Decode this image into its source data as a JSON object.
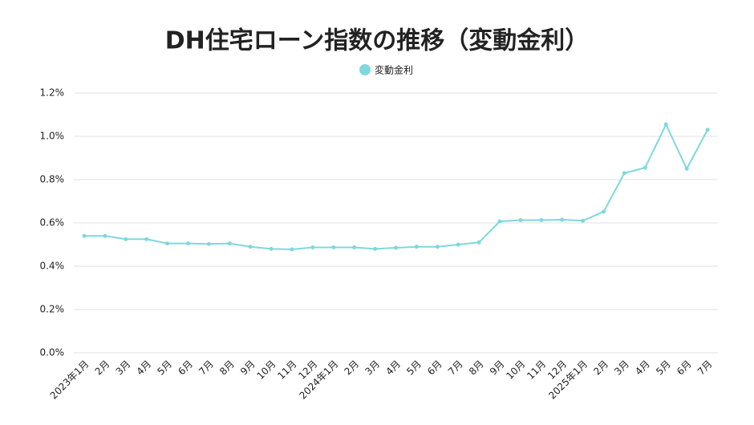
{
  "chart_data": {
    "type": "line",
    "title": "DH住宅ローン指数の推移（変動金利）",
    "categories": [
      "2023年1月",
      "2月",
      "3月",
      "4月",
      "5月",
      "6月",
      "7月",
      "8月",
      "9月",
      "10月",
      "11月",
      "12月",
      "2024年1月",
      "2月",
      "3月",
      "4月",
      "5月",
      "6月",
      "7月",
      "8月",
      "9月",
      "10月",
      "11月",
      "12月",
      "2025年1月",
      "2月",
      "3月",
      "4月",
      "5月",
      "6月",
      "7月"
    ],
    "series": [
      {
        "name": "変動金利",
        "color": "#7dd9dd",
        "values": [
          0.54,
          0.54,
          0.525,
          0.525,
          0.505,
          0.505,
          0.503,
          0.505,
          0.49,
          0.48,
          0.478,
          0.487,
          0.487,
          0.487,
          0.48,
          0.485,
          0.49,
          0.49,
          0.5,
          0.51,
          0.607,
          0.613,
          0.613,
          0.615,
          0.61,
          0.652,
          0.83,
          0.855,
          1.055,
          0.85,
          1.03
        ]
      }
    ],
    "ylim": [
      0,
      1.2
    ],
    "yticks": [
      {
        "value": 0,
        "label": "0.0%"
      },
      {
        "value": 0.2,
        "label": "0.2%"
      },
      {
        "value": 0.4,
        "label": "0.4%"
      },
      {
        "value": 0.6,
        "label": "0.6%"
      },
      {
        "value": 0.8,
        "label": "0.8%"
      },
      {
        "value": 1.0,
        "label": "1.0%"
      },
      {
        "value": 1.2,
        "label": "1.2%"
      }
    ],
    "grid": true
  }
}
